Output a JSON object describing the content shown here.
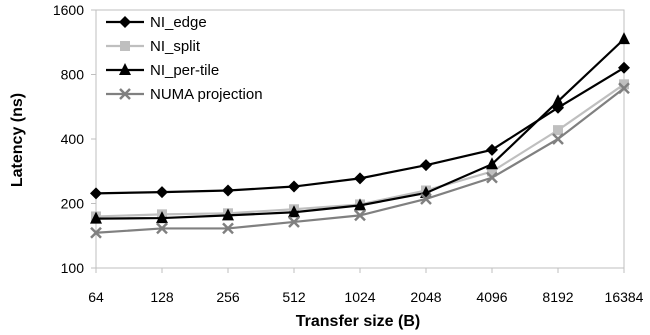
{
  "chart_data": {
    "type": "line",
    "xlabel": "Transfer size (B)",
    "ylabel": "Latency (ns)",
    "y_scale": "log2",
    "ylim": [
      100,
      1600
    ],
    "yticks": [
      "100",
      "200",
      "400",
      "800",
      "1600"
    ],
    "categories": [
      "64",
      "128",
      "256",
      "512",
      "1024",
      "2048",
      "4096",
      "8192",
      "16384"
    ],
    "grid": false,
    "legend_position": "top-left",
    "series": [
      {
        "name": "NI_edge",
        "color": "#000000",
        "marker": "diamond",
        "values": [
          223,
          226,
          230,
          240,
          262,
          302,
          356,
          560,
          860
        ]
      },
      {
        "name": "NI_split",
        "color": "#bfbfbf",
        "marker": "square",
        "values": [
          174,
          178,
          180,
          188,
          198,
          230,
          282,
          440,
          720
        ]
      },
      {
        "name": "NI_per-tile",
        "color": "#000000",
        "marker": "triangle",
        "values": [
          170,
          171,
          176,
          182,
          196,
          224,
          305,
          600,
          1170
        ]
      },
      {
        "name": "NUMA projection",
        "color": "#808080",
        "marker": "x",
        "values": [
          146,
          153,
          153,
          164,
          176,
          210,
          264,
          400,
          690
        ]
      }
    ]
  }
}
